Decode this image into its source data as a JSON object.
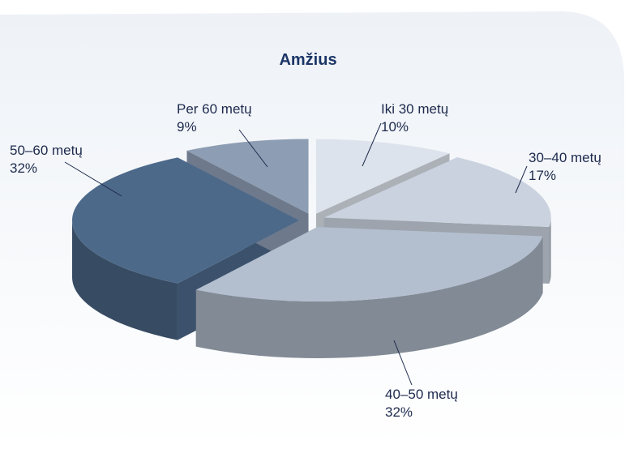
{
  "chart_data": {
    "type": "pie",
    "title": "Amžius",
    "slices": [
      {
        "label": "Iki 30 metų",
        "value_label": "10%",
        "value": 10,
        "color": "#dde3ec"
      },
      {
        "label": "30–40 metų",
        "value_label": "17%",
        "value": 17,
        "color": "#c9d2de"
      },
      {
        "label": "40–50 metų",
        "value_label": "32%",
        "value": 32,
        "color": "#b3bfcf"
      },
      {
        "label": "50–60 metų",
        "value_label": "32%",
        "value": 32,
        "color": "#4d698a"
      },
      {
        "label": "Per 60 metų",
        "value_label": "9%",
        "value": 9,
        "color": "#8d9db3"
      }
    ],
    "exploded": true,
    "three_d": true,
    "legend": "none"
  }
}
